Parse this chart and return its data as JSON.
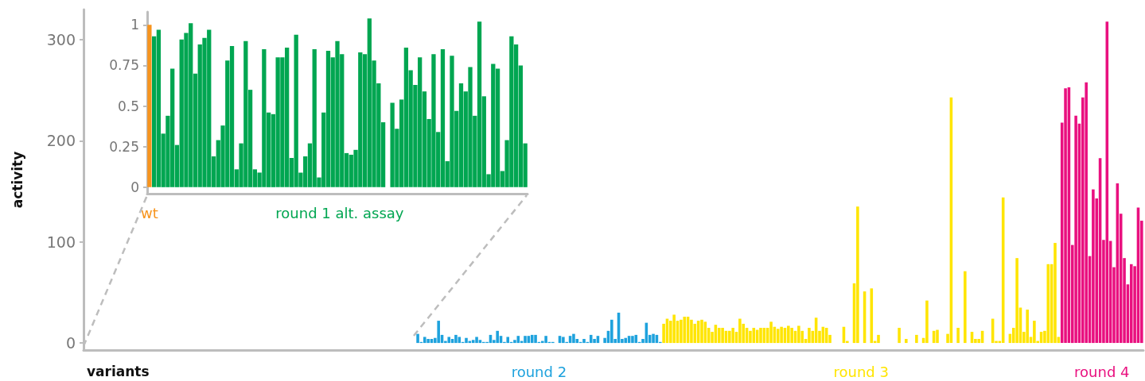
{
  "chart_data": [
    {
      "type": "bar",
      "xlabel": "variants",
      "ylabel": "activity",
      "tick_labels": "y",
      "ylim": [
        -7,
        330
      ],
      "yticks": [
        0,
        100,
        200,
        300
      ],
      "categories": [
        null,
        null,
        null,
        null,
        null,
        null,
        null,
        null,
        null,
        null,
        null,
        null,
        null,
        null,
        null,
        null,
        null,
        null,
        null,
        null,
        null,
        null,
        null,
        null,
        null,
        null,
        null,
        null,
        null,
        null,
        null,
        null,
        null,
        null,
        null,
        null,
        null,
        null,
        null,
        null,
        null,
        null,
        null,
        null,
        null,
        null,
        null,
        null,
        null,
        null,
        null,
        null,
        null,
        null,
        null,
        null,
        null,
        null,
        null,
        null,
        null,
        null,
        null,
        null,
        null,
        null,
        null,
        null,
        null,
        null,
        null,
        null,
        null,
        null,
        null,
        null,
        null,
        null,
        null,
        null,
        null,
        null,
        null,
        null,
        null,
        null,
        null,
        null,
        null,
        null,
        null,
        null,
        null,
        null,
        null,
        null,
        null,
        null,
        null,
        null,
        null,
        null,
        null,
        null,
        null,
        null,
        null,
        null,
        null,
        null,
        null,
        null,
        null,
        null,
        null,
        null,
        null,
        null,
        null,
        null,
        null,
        null,
        null,
        null,
        null,
        null,
        null,
        null,
        null,
        null,
        null,
        null,
        null,
        null,
        null,
        null,
        null,
        null,
        null,
        null,
        null,
        null,
        null,
        null,
        null,
        null,
        null,
        null,
        null,
        null,
        null,
        null,
        null,
        null,
        null,
        null,
        null,
        null,
        null,
        null,
        null,
        null,
        null,
        null,
        null,
        null,
        null,
        null,
        null,
        null,
        null,
        null,
        null,
        null,
        null,
        null,
        null,
        null,
        null,
        null,
        null,
        null,
        null,
        null,
        null,
        null,
        null,
        null,
        null,
        null,
        null,
        null,
        null,
        null,
        null,
        null,
        null,
        null,
        null,
        null,
        null,
        null,
        null,
        null,
        null,
        null,
        null,
        null,
        null,
        null,
        null,
        null,
        null,
        null,
        null,
        null,
        null,
        null,
        null,
        null,
        null,
        null,
        null,
        null,
        null,
        null,
        null,
        null,
        null,
        null,
        null,
        null,
        null,
        null,
        null,
        null,
        null,
        null,
        null,
        null,
        null,
        null,
        null,
        null,
        null,
        null,
        null,
        null,
        null,
        null,
        null,
        null,
        null,
        null,
        null,
        null,
        null,
        null,
        null,
        null,
        null,
        null,
        null,
        null,
        null,
        null,
        null,
        null,
        null,
        null,
        null,
        null,
        null,
        null,
        null,
        null,
        null,
        null,
        null,
        null,
        null,
        null,
        null,
        null,
        null,
        null,
        null,
        null,
        null,
        null,
        null,
        null,
        null,
        null,
        null,
        null,
        null,
        null,
        null,
        null,
        null,
        null,
        null,
        null,
        null,
        null
      ],
      "series": [
        {
          "name": "round 2",
          "color": "#1ea2dd",
          "values": [
            null,
            null,
            null,
            null,
            null,
            null,
            null,
            null,
            null,
            null,
            null,
            null,
            null,
            null,
            null,
            null,
            null,
            null,
            null,
            null,
            null,
            null,
            null,
            null,
            null,
            null,
            null,
            null,
            null,
            null,
            null,
            null,
            null,
            null,
            null,
            null,
            null,
            null,
            null,
            null,
            null,
            null,
            null,
            null,
            null,
            null,
            null,
            null,
            null,
            null,
            null,
            null,
            null,
            null,
            null,
            null,
            null,
            null,
            null,
            null,
            null,
            null,
            null,
            null,
            null,
            null,
            null,
            null,
            null,
            null,
            null,
            null,
            null,
            null,
            null,
            null,
            null,
            null,
            null,
            null,
            null,
            null,
            null,
            null,
            null,
            null,
            null,
            null,
            null,
            null,
            null,
            null,
            null,
            null,
            null,
            null,
            9,
            1,
            6,
            4,
            4,
            5,
            22,
            8,
            2,
            6,
            4,
            8,
            6,
            1,
            5,
            2,
            3,
            6,
            3,
            1,
            1,
            8,
            3,
            12,
            7,
            1,
            6,
            1,
            3,
            7,
            2,
            7,
            7,
            8,
            8,
            1,
            2,
            7,
            1,
            1,
            0,
            7,
            6,
            1,
            7,
            9,
            4,
            1,
            4,
            1,
            8,
            4,
            7,
            0,
            5,
            12,
            23,
            4,
            30,
            4,
            5,
            7,
            7,
            8,
            1,
            4,
            20,
            8,
            9,
            8,
            1,
            null,
            null,
            null,
            null,
            null,
            null,
            null,
            null,
            null,
            null,
            null,
            null,
            null,
            null,
            null,
            null,
            null,
            null,
            null,
            null,
            null,
            null,
            null,
            null,
            null,
            null,
            null,
            null,
            null,
            null,
            null,
            null,
            null,
            null,
            null,
            null,
            null,
            null,
            null,
            null,
            null,
            null,
            null,
            null,
            null,
            null,
            null,
            null,
            null,
            null,
            null,
            null,
            null,
            null,
            null,
            null,
            null,
            null,
            null,
            null,
            null,
            null,
            null,
            null,
            null,
            null,
            null,
            null,
            null,
            null,
            null,
            null,
            null,
            null,
            null,
            null,
            null,
            null,
            null,
            null,
            null,
            null,
            null,
            null,
            null,
            null,
            null,
            null,
            null,
            null,
            null,
            null,
            null,
            null,
            null,
            null,
            null,
            null,
            null,
            null,
            null,
            null,
            null,
            null,
            null,
            null,
            null,
            null,
            null,
            null,
            null,
            null,
            null,
            null,
            null,
            null,
            null,
            null,
            null,
            null,
            null,
            null,
            null,
            null,
            null,
            null,
            null,
            null,
            null,
            null,
            null,
            null,
            null,
            null,
            null,
            null,
            null,
            null,
            null
          ]
        },
        {
          "name": "round 3",
          "color": "#ffe500",
          "values": [
            null,
            null,
            null,
            null,
            null,
            null,
            null,
            null,
            null,
            null,
            null,
            null,
            null,
            null,
            null,
            null,
            null,
            null,
            null,
            null,
            null,
            null,
            null,
            null,
            null,
            null,
            null,
            null,
            null,
            null,
            null,
            null,
            null,
            null,
            null,
            null,
            null,
            null,
            null,
            null,
            null,
            null,
            null,
            null,
            null,
            null,
            null,
            null,
            null,
            null,
            null,
            null,
            null,
            null,
            null,
            null,
            null,
            null,
            null,
            null,
            null,
            null,
            null,
            null,
            null,
            null,
            null,
            null,
            null,
            null,
            null,
            null,
            null,
            null,
            null,
            null,
            null,
            null,
            null,
            null,
            null,
            null,
            null,
            null,
            null,
            null,
            null,
            null,
            null,
            null,
            null,
            null,
            null,
            null,
            null,
            null,
            null,
            null,
            null,
            null,
            null,
            null,
            null,
            null,
            null,
            null,
            null,
            null,
            null,
            null,
            null,
            null,
            null,
            null,
            null,
            null,
            null,
            null,
            null,
            null,
            null,
            null,
            null,
            null,
            null,
            null,
            null,
            null,
            null,
            null,
            null,
            null,
            null,
            null,
            null,
            null,
            null,
            null,
            null,
            null,
            null,
            null,
            null,
            null,
            null,
            null,
            null,
            null,
            null,
            null,
            null,
            null,
            null,
            null,
            null,
            null,
            null,
            null,
            null,
            null,
            null,
            null,
            null,
            null,
            null,
            null,
            null,
            19,
            24,
            22,
            28,
            22,
            23,
            26,
            26,
            23,
            19,
            22,
            23,
            21,
            15,
            11,
            18,
            15,
            15,
            12,
            12,
            15,
            11,
            24,
            19,
            15,
            12,
            15,
            13,
            15,
            15,
            15,
            21,
            16,
            14,
            16,
            15,
            17,
            15,
            12,
            17,
            12,
            4,
            15,
            12,
            25,
            12,
            16,
            15,
            8,
            0,
            0,
            0,
            16,
            2,
            0,
            59,
            135,
            0,
            51,
            0,
            54,
            2,
            8,
            0,
            0,
            0,
            0,
            0,
            15,
            0,
            4,
            0,
            0,
            8,
            0,
            5,
            42,
            0,
            12,
            13,
            0,
            0,
            9,
            243,
            0,
            15,
            0,
            71,
            0,
            11,
            4,
            4,
            12,
            0,
            0,
            24,
            2,
            2,
            144,
            0,
            9,
            15,
            84,
            35,
            11,
            33,
            6,
            22,
            2,
            11,
            12,
            78,
            78,
            99,
            6,
            null,
            null,
            null,
            null,
            null,
            null,
            null,
            null,
            null,
            null,
            null,
            null,
            null,
            null,
            null,
            null,
            null,
            null,
            null,
            null,
            null,
            null,
            null,
            null
          ]
        },
        {
          "name": "round 4",
          "color": "#e9107f",
          "values": [
            null,
            null,
            null,
            null,
            null,
            null,
            null,
            null,
            null,
            null,
            null,
            null,
            null,
            null,
            null,
            null,
            null,
            null,
            null,
            null,
            null,
            null,
            null,
            null,
            null,
            null,
            null,
            null,
            null,
            null,
            null,
            null,
            null,
            null,
            null,
            null,
            null,
            null,
            null,
            null,
            null,
            null,
            null,
            null,
            null,
            null,
            null,
            null,
            null,
            null,
            null,
            null,
            null,
            null,
            null,
            null,
            null,
            null,
            null,
            null,
            null,
            null,
            null,
            null,
            null,
            null,
            null,
            null,
            null,
            null,
            null,
            null,
            null,
            null,
            null,
            null,
            null,
            null,
            null,
            null,
            null,
            null,
            null,
            null,
            null,
            null,
            null,
            null,
            null,
            null,
            null,
            null,
            null,
            null,
            null,
            null,
            null,
            null,
            null,
            null,
            null,
            null,
            null,
            null,
            null,
            null,
            null,
            null,
            null,
            null,
            null,
            null,
            null,
            null,
            null,
            null,
            null,
            null,
            null,
            null,
            null,
            null,
            null,
            null,
            null,
            null,
            null,
            null,
            null,
            null,
            null,
            null,
            null,
            null,
            null,
            null,
            null,
            null,
            null,
            null,
            null,
            null,
            null,
            null,
            null,
            null,
            null,
            null,
            null,
            null,
            null,
            null,
            null,
            null,
            null,
            null,
            null,
            null,
            null,
            null,
            null,
            null,
            null,
            null,
            null,
            null,
            null,
            null,
            null,
            null,
            null,
            null,
            null,
            null,
            null,
            null,
            null,
            null,
            null,
            null,
            null,
            null,
            null,
            null,
            null,
            null,
            null,
            null,
            null,
            null,
            null,
            null,
            null,
            null,
            null,
            null,
            null,
            null,
            null,
            null,
            null,
            null,
            null,
            null,
            null,
            null,
            null,
            null,
            null,
            null,
            null,
            null,
            null,
            null,
            null,
            null,
            null,
            null,
            null,
            null,
            null,
            null,
            null,
            null,
            null,
            null,
            null,
            null,
            null,
            null,
            null,
            null,
            null,
            null,
            null,
            null,
            null,
            null,
            null,
            null,
            null,
            null,
            null,
            null,
            null,
            null,
            null,
            null,
            null,
            null,
            null,
            null,
            null,
            null,
            null,
            null,
            null,
            null,
            null,
            null,
            null,
            null,
            null,
            null,
            null,
            null,
            null,
            null,
            null,
            null,
            null,
            null,
            null,
            null,
            null,
            null,
            null,
            null,
            null,
            null,
            null,
            null,
            218,
            252,
            253,
            97,
            225,
            217,
            243,
            258,
            86,
            152,
            143,
            183,
            102,
            318,
            101,
            75,
            158,
            128,
            84,
            58,
            78,
            76,
            134,
            121
          ]
        }
      ]
    },
    {
      "type": "bar",
      "tick_labels": "y",
      "ylim": [
        -0.04,
        1.08
      ],
      "yticks": [
        0,
        0.25,
        0.5,
        0.75,
        1
      ],
      "categories": [
        null,
        null,
        null,
        null,
        null,
        null,
        null,
        null,
        null,
        null,
        null,
        null,
        null,
        null,
        null,
        null,
        null,
        null,
        null,
        null,
        null,
        null,
        null,
        null,
        null,
        null,
        null,
        null,
        null,
        null,
        null,
        null,
        null,
        null,
        null,
        null,
        null,
        null,
        null,
        null,
        null,
        null,
        null,
        null,
        null,
        null,
        null,
        null,
        null,
        null,
        null,
        null,
        null,
        null,
        null,
        null,
        null,
        null,
        null,
        null,
        null,
        null,
        null,
        null,
        null,
        null,
        null,
        null,
        null,
        null,
        null,
        null,
        null,
        null,
        null,
        null,
        null,
        null,
        null,
        null,
        null,
        null,
        null
      ],
      "series": [
        {
          "name": "wt",
          "color": "#f7941d",
          "values": [
            1,
            null,
            null,
            null,
            null,
            null,
            null,
            null,
            null,
            null,
            null,
            null,
            null,
            null,
            null,
            null,
            null,
            null,
            null,
            null,
            null,
            null,
            null,
            null,
            null,
            null,
            null,
            null,
            null,
            null,
            null,
            null,
            null,
            null,
            null,
            null,
            null,
            null,
            null,
            null,
            null,
            null,
            null,
            null,
            null,
            null,
            null,
            null,
            null,
            null,
            null,
            null,
            null,
            null,
            null,
            null,
            null,
            null,
            null,
            null,
            null,
            null,
            null,
            null,
            null,
            null,
            null,
            null,
            null,
            null,
            null,
            null,
            null,
            null,
            null,
            null,
            null,
            null,
            null,
            null,
            null,
            null,
            null
          ]
        },
        {
          "name": "round 1 alt. assay",
          "color": "#00a651",
          "values": [
            null,
            0.93,
            0.97,
            0.33,
            0.44,
            0.73,
            0.26,
            0.91,
            0.95,
            1.01,
            0.7,
            0.88,
            0.92,
            0.97,
            0.19,
            0.29,
            0.38,
            0.78,
            0.87,
            0.11,
            0.27,
            0.9,
            0.6,
            0.11,
            0.09,
            0.85,
            0.46,
            0.45,
            0.8,
            0.8,
            0.86,
            0.18,
            0.94,
            0.09,
            0.19,
            0.27,
            0.85,
            0.06,
            0.46,
            0.84,
            0.8,
            0.9,
            0.82,
            0.21,
            0.2,
            0.23,
            0.83,
            0.82,
            1.04,
            0.78,
            0.64,
            0.4,
            0,
            0.52,
            0.36,
            0.54,
            0.86,
            0.72,
            0.63,
            0.8,
            0.59,
            0.42,
            0.82,
            0.34,
            0.85,
            0.16,
            0.81,
            0.47,
            0.64,
            0.59,
            0.74,
            0.44,
            1.02,
            0.56,
            0.08,
            0.76,
            0.73,
            0.1,
            0.29,
            0.93,
            0.88,
            0.75,
            0.27
          ]
        }
      ]
    }
  ]
}
